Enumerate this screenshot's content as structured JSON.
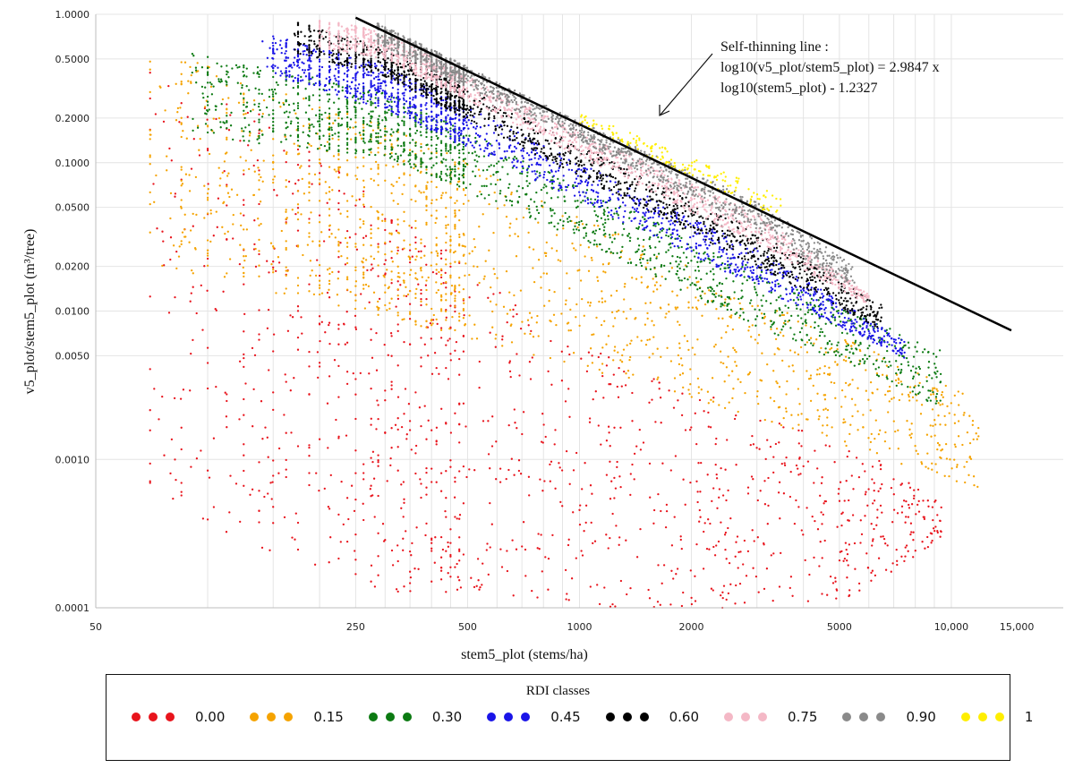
{
  "chart_data": {
    "type": "scatter",
    "xlabel": "stem5_plot (stems/ha)",
    "ylabel": "v5_plot/stem5_plot (m³/tree)",
    "x_scale": "log",
    "y_scale": "log",
    "xlim": [
      50,
      20000
    ],
    "ylim": [
      0.0001,
      1.0
    ],
    "x_ticks": [
      {
        "value": 50,
        "label": "50"
      },
      {
        "value": 250,
        "label": "250"
      },
      {
        "value": 500,
        "label": "500"
      },
      {
        "value": 1000,
        "label": "1000"
      },
      {
        "value": 2000,
        "label": "2000"
      },
      {
        "value": 5000,
        "label": "5000"
      },
      {
        "value": 10000,
        "label": "10,000"
      },
      {
        "value": 15000,
        "label": "15,000"
      }
    ],
    "x_gridlines": [
      100,
      150,
      200,
      250,
      300,
      350,
      400,
      450,
      500,
      600,
      700,
      800,
      900,
      1000,
      2000,
      3000,
      4000,
      5000,
      6000,
      7000,
      8000,
      9000,
      10000
    ],
    "y_ticks": [
      {
        "value": 1.0,
        "label": "1.0000"
      },
      {
        "value": 0.5,
        "label": "0.5000"
      },
      {
        "value": 0.2,
        "label": "0.2000"
      },
      {
        "value": 0.1,
        "label": "0.1000"
      },
      {
        "value": 0.05,
        "label": "0.0500"
      },
      {
        "value": 0.02,
        "label": "0.0200"
      },
      {
        "value": 0.01,
        "label": "0.0100"
      },
      {
        "value": 0.005,
        "label": "0.0050"
      },
      {
        "value": 0.001,
        "label": "0.0010"
      },
      {
        "value": 0.0001,
        "label": "0.0001"
      }
    ],
    "grid": true,
    "self_thinning_line": {
      "x": [
        250,
        14500
      ],
      "y": [
        0.95,
        0.0074
      ],
      "color": "#000000"
    },
    "annotation": {
      "lines": [
        "Self-thinning line :",
        "log10(v5_plot/stem5_plot) = 2.9847 x",
        "log10(stem5_plot) - 1.2327"
      ]
    },
    "series": [
      {
        "name": "0.00",
        "color": "#e8141c",
        "x_range": [
          70,
          9500
        ],
        "y_lower": [
          [
            70,
            0.00045
          ],
          [
            300,
            0.00013
          ],
          [
            1000,
            0.0001
          ],
          [
            5000,
            0.0001
          ],
          [
            9500,
            0.0003
          ]
        ],
        "y_upper": [
          [
            70,
            0.5
          ],
          [
            150,
            0.2
          ],
          [
            300,
            0.05
          ],
          [
            1000,
            0.006
          ],
          [
            3000,
            0.002
          ],
          [
            6000,
            0.0011
          ],
          [
            9500,
            0.0005
          ]
        ]
      },
      {
        "name": "0.15",
        "color": "#f5a300",
        "x_range": [
          70,
          12000
        ],
        "y_lower": [
          [
            70,
            0.02
          ],
          [
            300,
            0.009
          ],
          [
            1000,
            0.0042
          ],
          [
            3000,
            0.0019
          ],
          [
            6000,
            0.0011
          ],
          [
            12000,
            0.0006
          ]
        ],
        "y_upper": [
          [
            70,
            0.6
          ],
          [
            300,
            0.18
          ],
          [
            1000,
            0.045
          ],
          [
            3000,
            0.012
          ],
          [
            6000,
            0.0055
          ],
          [
            12000,
            0.0025
          ]
        ]
      },
      {
        "name": "0.30",
        "color": "#0c7a12",
        "x_range": [
          90,
          9500
        ],
        "y_lower": [
          [
            90,
            0.15
          ],
          [
            300,
            0.11
          ],
          [
            1000,
            0.03
          ],
          [
            3000,
            0.0078
          ],
          [
            6000,
            0.0038
          ],
          [
            9500,
            0.0022
          ]
        ],
        "y_upper": [
          [
            90,
            0.55
          ],
          [
            300,
            0.3
          ],
          [
            1000,
            0.07
          ],
          [
            3000,
            0.019
          ],
          [
            6000,
            0.009
          ],
          [
            9500,
            0.0055
          ]
        ]
      },
      {
        "name": "0.45",
        "color": "#1a14e8",
        "x_range": [
          140,
          7500
        ],
        "y_lower": [
          [
            140,
            0.4
          ],
          [
            300,
            0.23
          ],
          [
            1000,
            0.055
          ],
          [
            3000,
            0.0145
          ],
          [
            7500,
            0.0048
          ]
        ],
        "y_upper": [
          [
            140,
            0.75
          ],
          [
            300,
            0.45
          ],
          [
            1000,
            0.1
          ],
          [
            3000,
            0.026
          ],
          [
            7500,
            0.0062
          ]
        ]
      },
      {
        "name": "0.60",
        "color": "#000000",
        "x_range": [
          170,
          6500
        ],
        "y_lower": [
          [
            170,
            0.55
          ],
          [
            300,
            0.38
          ],
          [
            1000,
            0.08
          ],
          [
            3000,
            0.02
          ],
          [
            6500,
            0.0075
          ]
        ],
        "y_upper": [
          [
            170,
            0.9
          ],
          [
            300,
            0.6
          ],
          [
            1000,
            0.13
          ],
          [
            3000,
            0.035
          ],
          [
            6500,
            0.011
          ]
        ]
      },
      {
        "name": "0.75",
        "color": "#f4b8c6",
        "x_range": [
          200,
          6000
        ],
        "y_lower": [
          [
            200,
            0.6
          ],
          [
            300,
            0.5
          ],
          [
            1000,
            0.11
          ],
          [
            3000,
            0.028
          ],
          [
            6000,
            0.011
          ]
        ],
        "y_upper": [
          [
            200,
            0.95
          ],
          [
            300,
            0.75
          ],
          [
            1000,
            0.16
          ],
          [
            3000,
            0.045
          ],
          [
            6000,
            0.013
          ]
        ]
      },
      {
        "name": "0.90",
        "color": "#8a8a8a",
        "x_range": [
          280,
          5500
        ],
        "y_lower": [
          [
            280,
            0.65
          ],
          [
            1000,
            0.14
          ],
          [
            3000,
            0.035
          ],
          [
            5500,
            0.014
          ]
        ],
        "y_upper": [
          [
            280,
            0.9
          ],
          [
            1000,
            0.19
          ],
          [
            3000,
            0.055
          ],
          [
            5500,
            0.02
          ]
        ]
      },
      {
        "name": "1",
        "color": "#ffee00",
        "x_range": [
          1000,
          3500
        ],
        "y_lower": [
          [
            1000,
            0.18
          ],
          [
            3500,
            0.042
          ]
        ],
        "y_upper": [
          [
            1000,
            0.22
          ],
          [
            3500,
            0.06
          ]
        ]
      }
    ],
    "legend": {
      "title": "RDI classes",
      "placement": "bottom"
    }
  }
}
